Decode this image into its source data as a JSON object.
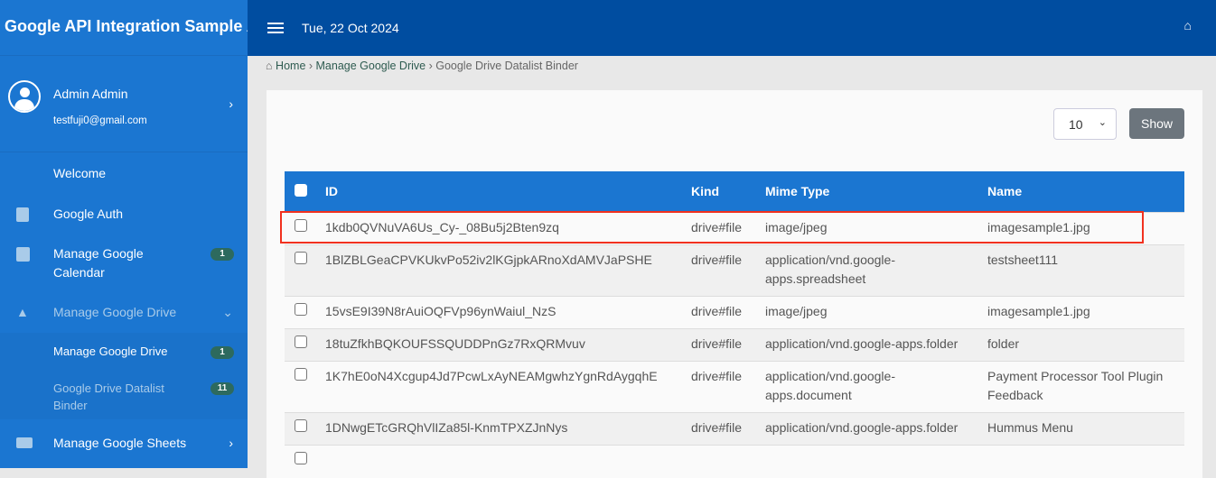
{
  "app": {
    "title": "Google API Integration Sample App"
  },
  "topbar": {
    "date": "Tue, 22 Oct 2024"
  },
  "user": {
    "name": "Admin Admin",
    "email": "testfuji0@gmail.com"
  },
  "sidebar": {
    "items": [
      {
        "label": "Welcome"
      },
      {
        "label": "Google Auth",
        "icon": "contact-book-icon"
      },
      {
        "label": "Manage Google Calendar",
        "badge": "1",
        "icon": "calendar-check-icon"
      },
      {
        "label": "Manage Google Drive",
        "icon": "google-drive-icon"
      },
      {
        "label": "Manage Google Drive",
        "badge": "1"
      },
      {
        "label": "Google Drive Datalist Binder",
        "badge": "11"
      },
      {
        "label": "Manage Google Sheets",
        "icon": "sheet-icon"
      }
    ]
  },
  "breadcrumb": [
    "Home",
    "Manage Google Drive",
    "Google Drive Datalist Binder"
  ],
  "controls": {
    "page_size": "10",
    "show_label": "Show"
  },
  "table": {
    "headers": [
      "ID",
      "Kind",
      "Mime Type",
      "Name"
    ],
    "rows": [
      [
        "1kdb0QVNuVA6Us_Cy-_08Bu5j2Bten9zq",
        "drive#file",
        "image/jpeg",
        "imagesample1.jpg"
      ],
      [
        "1BlZBLGeaCPVKUkvPo52iv2lKGjpkARnoXdAMVJaPSHE",
        "drive#file",
        "application/vnd.google-apps.spreadsheet",
        "testsheet111"
      ],
      [
        "15vsE9I39N8rAuiOQFVp96ynWaiul_NzS",
        "drive#file",
        "image/jpeg",
        "imagesample1.jpg"
      ],
      [
        "18tuZfkhBQKOUFSSQUDDPnGz7RxQRMvuv",
        "drive#file",
        "application/vnd.google-apps.folder",
        "folder"
      ],
      [
        "1K7hE0oN4Xcgup4Jd7PcwLxAyNEAMgwhzYgnRdAygqhE",
        "drive#file",
        "application/vnd.google-apps.document",
        "Payment Processor Tool Plugin Feedback"
      ],
      [
        "1DNwgETcGRQhVlIZa85l-KnmTPXZJnNys",
        "drive#file",
        "application/vnd.google-apps.folder",
        "Hummus Menu"
      ]
    ]
  },
  "colors": {
    "sidebar": "#1b76d1",
    "topbar": "#004da0",
    "highlight": "#f1311f",
    "badge": "#2d6a5e"
  }
}
